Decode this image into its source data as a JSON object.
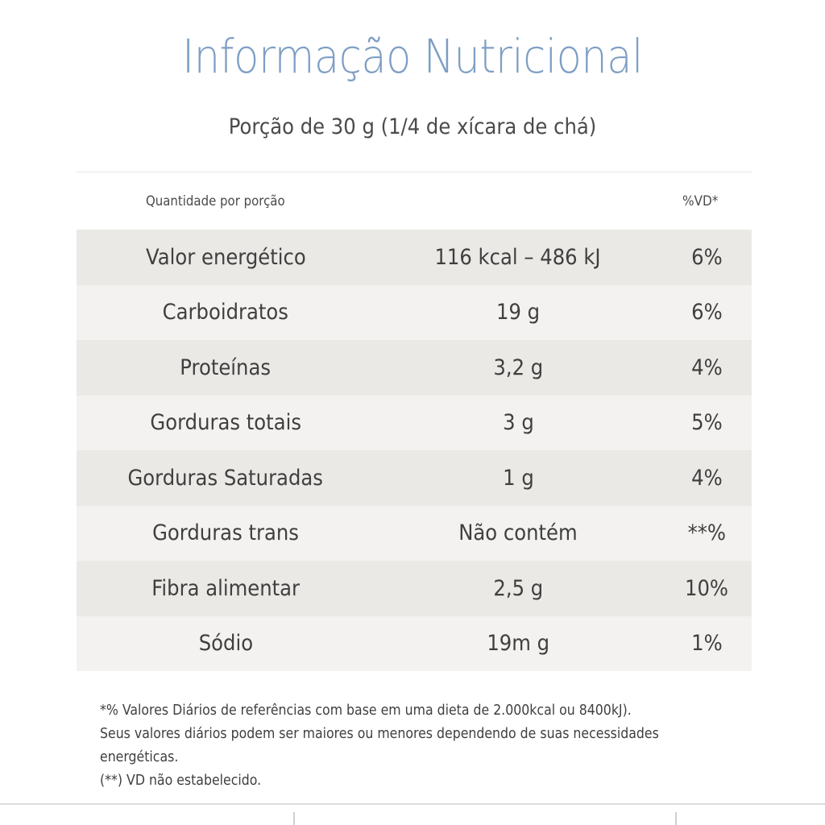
{
  "title": "Informação Nutricional",
  "subtitle": "Porção de 30 g (1/4 de xícara de chá)",
  "header": {
    "quantity_label": "Quantidade por porção",
    "vd_label": "%VD*"
  },
  "rows": [
    {
      "name": "Valor energético",
      "amount": "116 kcal – 486 kJ",
      "vd": "6%"
    },
    {
      "name": "Carboidratos",
      "amount": "19 g",
      "vd": "6%"
    },
    {
      "name": "Proteínas",
      "amount": "3,2 g",
      "vd": "4%"
    },
    {
      "name": "Gorduras totais",
      "amount": "3 g",
      "vd": "5%"
    },
    {
      "name": "Gorduras Saturadas",
      "amount": "1 g",
      "vd": "4%"
    },
    {
      "name": "Gorduras trans",
      "amount": "Não contém",
      "vd": "**%"
    },
    {
      "name": "Fibra alimentar",
      "amount": "2,5 g",
      "vd": "10%"
    },
    {
      "name": "Sódio",
      "amount": "19m g",
      "vd": "1%"
    }
  ],
  "footnote": {
    "line1": "*% Valores Diários de referências com base em uma dieta de 2.000kcal ou 8400kJ).",
    "line2": "Seus valores diários podem ser maiores ou menores dependendo de suas necessidades",
    "line3": "energéticas.",
    "line4": "(**) VD não estabelecido."
  },
  "colors": {
    "title": "#7e9fc4",
    "row_shade_dark": "#ebe9e6",
    "row_shade_light": "#f3f2f0",
    "text": "#3f3f3f"
  }
}
